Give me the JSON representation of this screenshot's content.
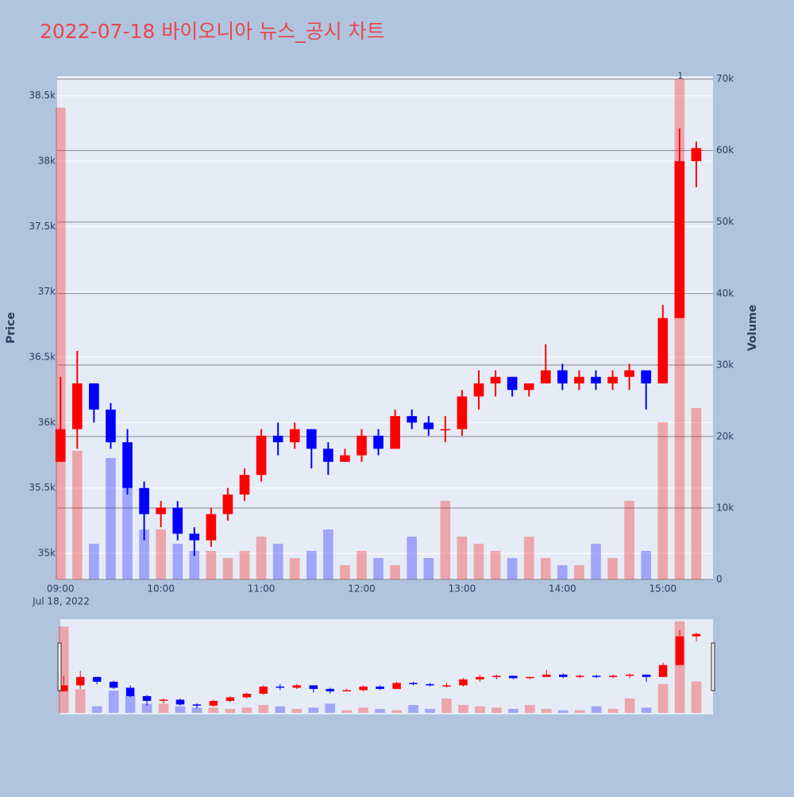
{
  "chart_data": {
    "type": "candlestick",
    "title": "2022-07-18 바이오니아 뉴스_공시 차트",
    "y_label": "Price",
    "y2_label": "Volume",
    "x_date_label": "Jul 18, 2022",
    "x": [
      "09:00",
      "09:10",
      "09:20",
      "09:30",
      "09:40",
      "09:50",
      "10:00",
      "10:10",
      "10:20",
      "10:30",
      "10:40",
      "10:50",
      "11:00",
      "11:10",
      "11:20",
      "11:30",
      "11:40",
      "11:50",
      "12:00",
      "12:10",
      "12:20",
      "12:30",
      "12:40",
      "12:50",
      "13:00",
      "13:10",
      "13:20",
      "13:30",
      "13:40",
      "13:50",
      "14:00",
      "14:10",
      "14:20",
      "14:30",
      "14:40",
      "14:50",
      "15:00",
      "15:10",
      "15:20"
    ],
    "open": [
      35700,
      35950,
      36300,
      36100,
      35850,
      35500,
      35300,
      35350,
      35150,
      35100,
      35300,
      35450,
      35600,
      35900,
      35850,
      35950,
      35800,
      35700,
      35750,
      35900,
      35800,
      36050,
      36000,
      35950,
      35950,
      36200,
      36300,
      36350,
      36250,
      36300,
      36400,
      36300,
      36350,
      36300,
      36350,
      36400,
      36300,
      36800,
      38000
    ],
    "high": [
      36350,
      36550,
      36300,
      36150,
      35950,
      35550,
      35400,
      35400,
      35200,
      35350,
      35500,
      35650,
      35950,
      36000,
      36000,
      35950,
      35850,
      35800,
      35950,
      35950,
      36100,
      36100,
      36050,
      36050,
      36250,
      36400,
      36400,
      36350,
      36300,
      36600,
      36450,
      36400,
      36400,
      36400,
      36450,
      36400,
      36900,
      38250,
      38150
    ],
    "low": [
      35700,
      35800,
      36000,
      35800,
      35450,
      35100,
      35200,
      35100,
      34980,
      35050,
      35250,
      35400,
      35550,
      35750,
      35800,
      35650,
      35600,
      35700,
      35700,
      35750,
      35800,
      35950,
      35900,
      35850,
      35900,
      36100,
      36200,
      36200,
      36200,
      36300,
      36250,
      36250,
      36250,
      36250,
      36250,
      36100,
      36300,
      36800,
      37800
    ],
    "close": [
      35950,
      36300,
      36100,
      35850,
      35500,
      35300,
      35350,
      35150,
      35100,
      35300,
      35450,
      35600,
      35900,
      35850,
      35950,
      35800,
      35700,
      35750,
      35900,
      35800,
      36050,
      36000,
      35950,
      35950,
      36200,
      36300,
      36350,
      36250,
      36300,
      36400,
      36300,
      36350,
      36300,
      36350,
      36400,
      36300,
      36800,
      38000,
      38100
    ],
    "volume": [
      66000,
      18000,
      5000,
      17000,
      13000,
      7000,
      7000,
      5000,
      4000,
      4000,
      3000,
      4000,
      6000,
      5000,
      3000,
      4000,
      7000,
      2000,
      4000,
      3000,
      2000,
      6000,
      3000,
      11000,
      6000,
      5000,
      4000,
      3000,
      6000,
      3000,
      2000,
      2000,
      5000,
      3000,
      11000,
      4000,
      22000,
      70000,
      24000
    ],
    "up_color": "#ff0000",
    "down_color": "#0000ff",
    "xlim": [
      "08:58",
      "15:30"
    ],
    "xticks": [
      "09:00",
      "10:00",
      "11:00",
      "12:00",
      "13:00",
      "14:00",
      "15:00"
    ],
    "ylim": [
      34800,
      38650
    ],
    "yticks": [
      {
        "value": 35000,
        "label": "35k"
      },
      {
        "value": 35500,
        "label": "35.5k"
      },
      {
        "value": 36000,
        "label": "36k"
      },
      {
        "value": 36500,
        "label": "36.5k"
      },
      {
        "value": 37000,
        "label": "37k"
      },
      {
        "value": 37500,
        "label": "37.5k"
      },
      {
        "value": 38000,
        "label": "38k"
      },
      {
        "value": 38500,
        "label": "38.5k"
      }
    ],
    "y2lim": [
      0,
      70400
    ],
    "y2ticks": [
      0,
      {
        "value": 10000,
        "label": "10k"
      },
      {
        "value": 20000,
        "label": "20k"
      },
      {
        "value": 30000,
        "label": "30k"
      },
      {
        "value": 40000,
        "label": "40k"
      },
      {
        "value": 50000,
        "label": "50k"
      },
      {
        "value": 60000,
        "label": "60k"
      },
      {
        "value": 70000,
        "label": "70k"
      }
    ],
    "annotations": [
      {
        "text": "1",
        "x": "15:10"
      }
    ],
    "grid": true,
    "range_slider": true
  }
}
